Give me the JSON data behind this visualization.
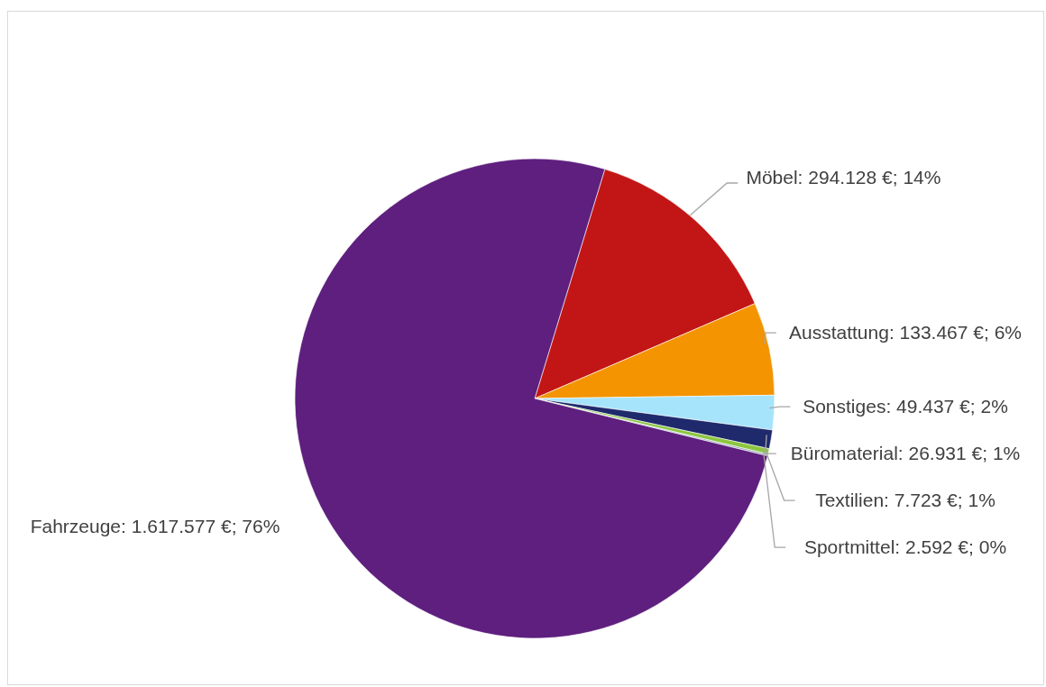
{
  "chart_data": {
    "type": "pie",
    "categories": [
      "Möbel",
      "Ausstattung",
      "Sonstiges",
      "Büromaterial",
      "Textilien",
      "Sportmittel",
      "Fahrzeuge"
    ],
    "values": [
      294128,
      133467,
      49437,
      26931,
      7723,
      2592,
      1617577
    ],
    "colors": [
      "#c21616",
      "#f39400",
      "#a6e4fc",
      "#1f2a6c",
      "#8cc63f",
      "#9aa9b8",
      "#5e1f7e"
    ],
    "value_labels": [
      "294.128 €; 14%",
      "133.467 €; 6%",
      "49.437 €; 2%",
      "26.931 €; 1%",
      "7.723 €; 1%",
      "2.592 €; 0%",
      "1.617.577 €; 76%"
    ]
  }
}
